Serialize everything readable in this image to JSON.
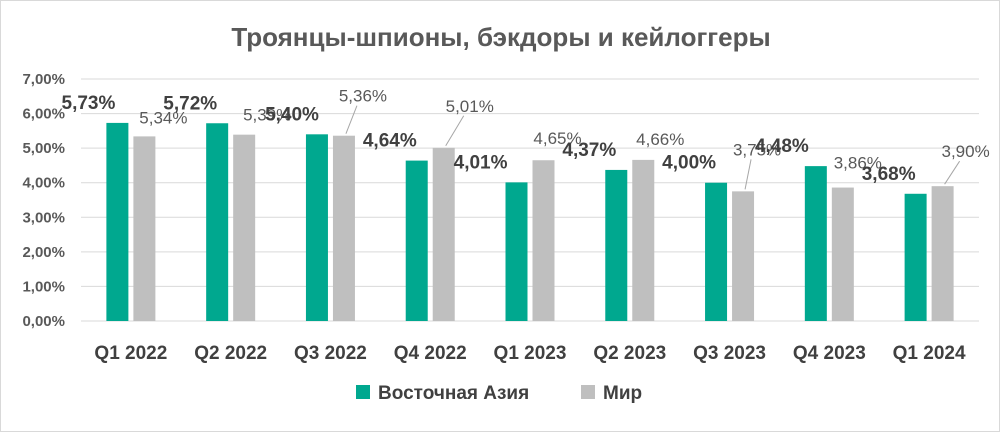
{
  "colors": {
    "east_asia": "#00a88f",
    "world": "#bfbfbf",
    "grid": "#d9d9d9",
    "text": "#404040"
  },
  "chart_data": {
    "type": "bar",
    "title": "Троянцы-шпионы, бэкдоры и кейлоггеры",
    "xlabel": "",
    "ylabel": "",
    "ylim": [
      0,
      7
    ],
    "y_ticks": [
      "0,00%",
      "1,00%",
      "2,00%",
      "3,00%",
      "4,00%",
      "5,00%",
      "6,00%",
      "7,00%"
    ],
    "grid": true,
    "legend_position": "bottom",
    "categories": [
      "Q1 2022",
      "Q2 2022",
      "Q3 2022",
      "Q4 2022",
      "Q1 2023",
      "Q2 2023",
      "Q3 2023",
      "Q4 2023",
      "Q1 2024"
    ],
    "series": [
      {
        "name": "Восточная Азия",
        "values": [
          5.73,
          5.72,
          5.4,
          4.64,
          4.01,
          4.37,
          4.0,
          4.48,
          3.68
        ],
        "labels": [
          "5,73%",
          "5,72%",
          "5,40%",
          "4,64%",
          "4,01%",
          "4,37%",
          "4,00%",
          "4,48%",
          "3,68%"
        ]
      },
      {
        "name": "Мир",
        "values": [
          5.34,
          5.39,
          5.36,
          5.01,
          4.65,
          4.66,
          3.75,
          3.86,
          3.9
        ],
        "labels": [
          "5,34%",
          "5,39%",
          "5,36%",
          "5,01%",
          "4,65%",
          "4,66%",
          "3,75%",
          "3,86%",
          "3,90%"
        ]
      }
    ]
  }
}
